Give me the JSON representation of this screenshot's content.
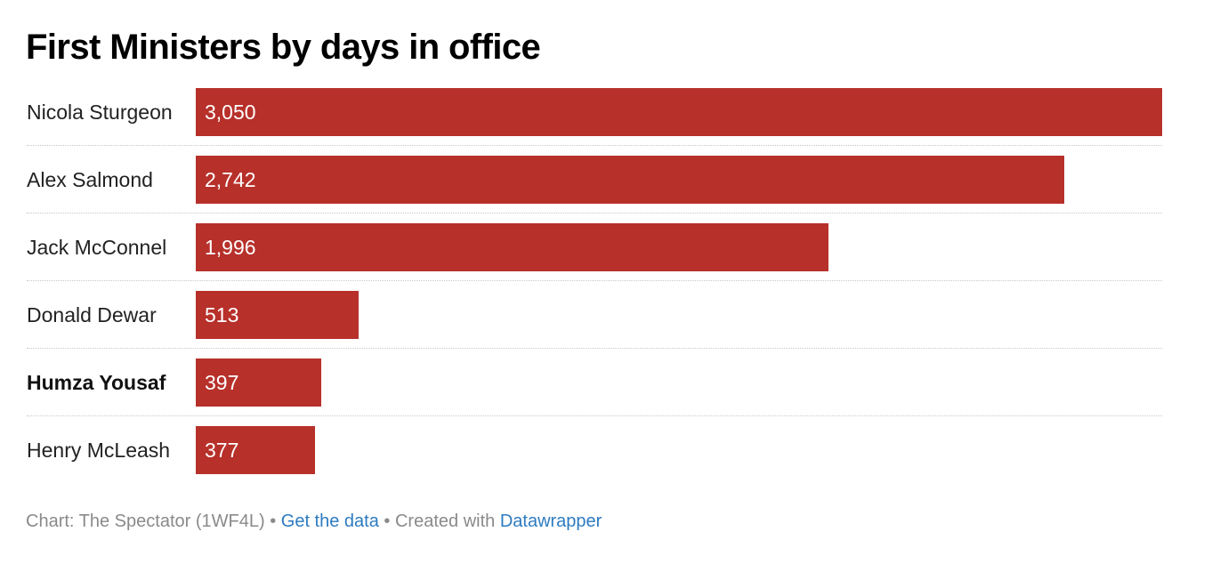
{
  "chart_data": {
    "type": "bar",
    "orientation": "horizontal",
    "title": "First Ministers by days in office",
    "xlabel": "",
    "ylabel": "",
    "categories": [
      "Nicola Sturgeon",
      "Alex Salmond",
      "Jack McConnel",
      "Donald Dewar",
      "Humza Yousaf",
      "Henry McLeash"
    ],
    "values": [
      3050,
      2742,
      1996,
      513,
      397,
      377
    ],
    "value_labels": [
      "3,050",
      "2,742",
      "1,996",
      "513",
      "397",
      "377"
    ],
    "highlighted": [
      "Humza Yousaf"
    ],
    "xlim": [
      0,
      3050
    ],
    "grid": false,
    "legend": "none",
    "bar_color": "#b7302a"
  },
  "footer": {
    "source": "Chart: The Spectator (1WF4L)",
    "separator": "•",
    "get_data_label": "Get the data",
    "created_with": "Created with",
    "tool_label": "Datawrapper"
  }
}
